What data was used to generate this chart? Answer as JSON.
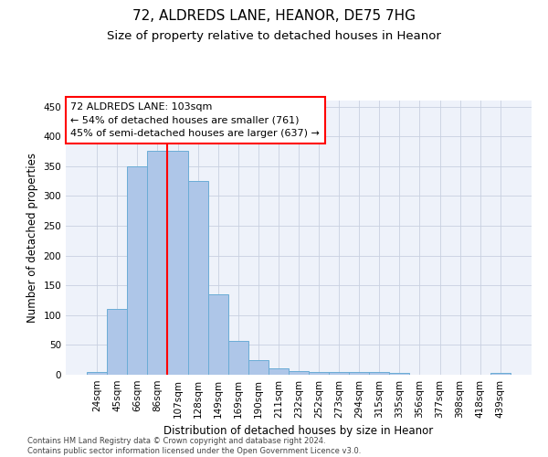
{
  "title_line1": "72, ALDREDS LANE, HEANOR, DE75 7HG",
  "title_line2": "Size of property relative to detached houses in Heanor",
  "xlabel": "Distribution of detached houses by size in Heanor",
  "ylabel": "Number of detached properties",
  "footnote": "Contains HM Land Registry data © Crown copyright and database right 2024.\nContains public sector information licensed under the Open Government Licence v3.0.",
  "bar_labels": [
    "24sqm",
    "45sqm",
    "66sqm",
    "86sqm",
    "107sqm",
    "128sqm",
    "149sqm",
    "169sqm",
    "190sqm",
    "211sqm",
    "232sqm",
    "252sqm",
    "273sqm",
    "294sqm",
    "315sqm",
    "335sqm",
    "356sqm",
    "377sqm",
    "398sqm",
    "418sqm",
    "439sqm"
  ],
  "bar_values": [
    5,
    110,
    350,
    375,
    375,
    325,
    135,
    57,
    25,
    11,
    6,
    5,
    5,
    5,
    5,
    3,
    0,
    0,
    0,
    0,
    3
  ],
  "bar_color": "#aec6e8",
  "bar_edge_color": "#6aacd6",
  "annotation_box_text": "72 ALDREDS LANE: 103sqm\n← 54% of detached houses are smaller (761)\n45% of semi-detached houses are larger (637) →",
  "vline_x_index": 3.5,
  "vline_color": "red",
  "ylim": [
    0,
    460
  ],
  "yticks": [
    0,
    50,
    100,
    150,
    200,
    250,
    300,
    350,
    400,
    450
  ],
  "bg_color": "#eef2fa",
  "grid_color": "#c8d0e0",
  "title_fontsize": 11,
  "subtitle_fontsize": 9.5,
  "axis_label_fontsize": 8.5,
  "tick_fontsize": 7.5,
  "footnote_fontsize": 6
}
